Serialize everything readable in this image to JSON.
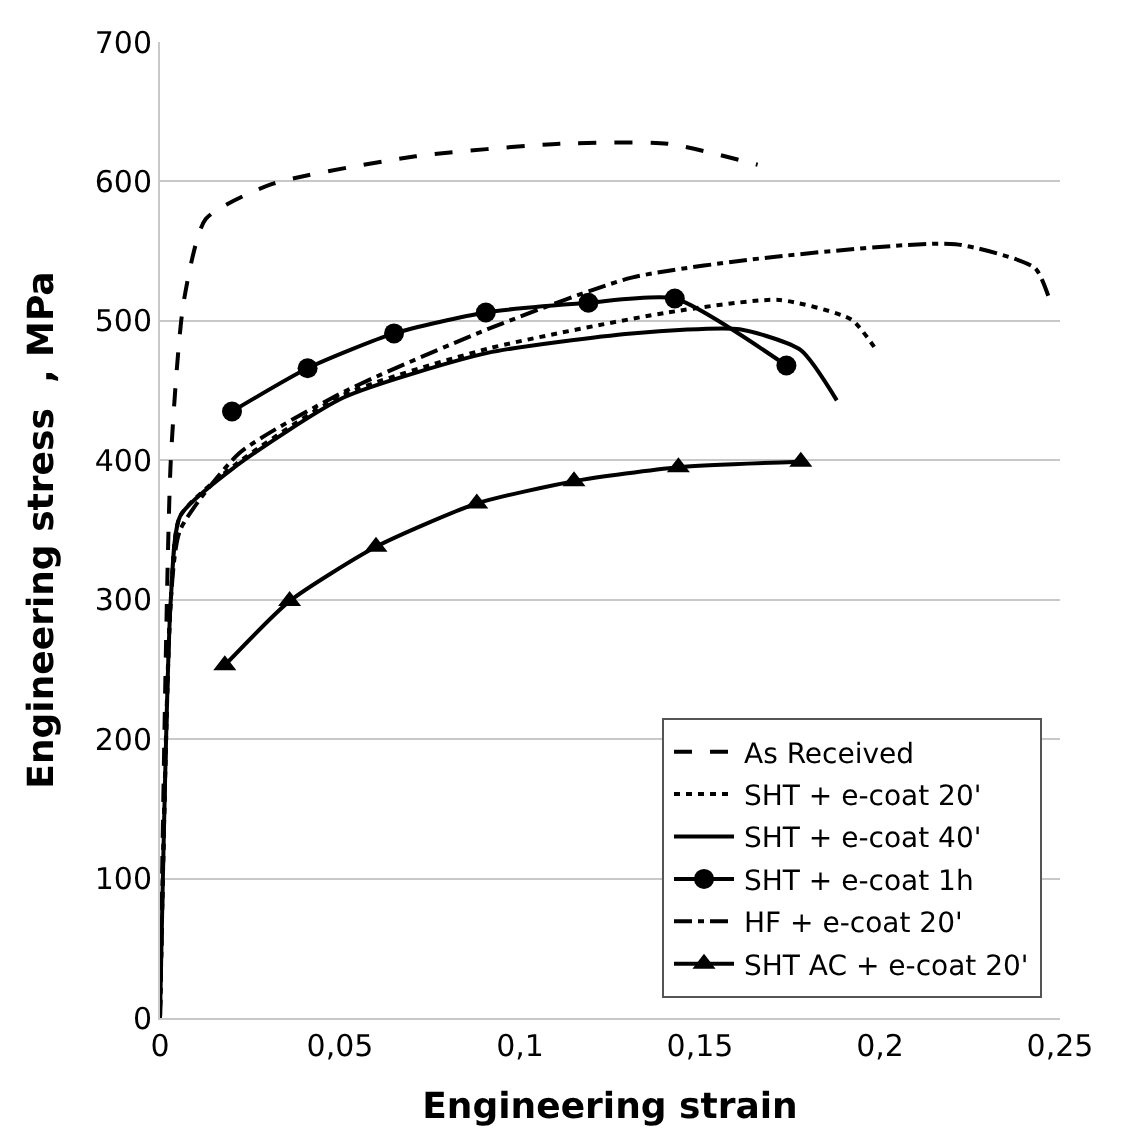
{
  "chart_data": {
    "type": "line",
    "xlabel": "Engineering strain",
    "ylabel": "Engineering stress  , MPa",
    "xlim": [
      0,
      0.25
    ],
    "ylim": [
      0,
      700
    ],
    "xticks": [
      0,
      {
        "value": 0.05,
        "label": "0,05"
      },
      {
        "value": 0.1,
        "label": "0,1"
      },
      {
        "value": 0.15,
        "label": "0,15"
      },
      {
        "value": 0.2,
        "label": "0,2"
      },
      {
        "value": 0.25,
        "label": "0,25"
      }
    ],
    "yticks": [
      0,
      100,
      200,
      300,
      400,
      500,
      600,
      700
    ],
    "grid": "y",
    "legend": "bottom right",
    "series": [
      {
        "name": "As Received",
        "color": "#000000",
        "line_style": "dashed",
        "marker": "none",
        "x": [
          0,
          0.003,
          0.0066,
          0.0127,
          0.031,
          0.071,
          0.111,
          0.141,
          0.166
        ],
        "values": [
          0,
          400,
          514,
          573,
          598,
          618,
          627,
          627,
          612
        ]
      },
      {
        "name": "SHT + e-coat 20'",
        "color": "#000000",
        "line_style": "dotted",
        "marker": "none",
        "x": [
          0,
          0.003,
          0.0056,
          0.021,
          0.051,
          0.091,
          0.141,
          0.172,
          0.192,
          0.199
        ],
        "values": [
          0,
          300,
          360,
          397,
          447,
          480,
          506,
          515,
          501,
          479
        ]
      },
      {
        "name": "SHT + e-coat 40'",
        "color": "#000000",
        "line_style": "solid",
        "marker": "none",
        "x": [
          0,
          0.003,
          0.0056,
          0.0207,
          0.051,
          0.091,
          0.131,
          0.161,
          0.178,
          0.188
        ],
        "values": [
          0,
          300,
          360,
          395,
          445,
          477,
          491,
          494,
          479,
          443
        ]
      },
      {
        "name": "SHT + e-coat 1h",
        "color": "#000000",
        "line_style": "solid",
        "marker": "circle",
        "x": [
          0.02,
          0.041,
          0.065,
          0.0905,
          0.119,
          0.143,
          0.174
        ],
        "values": [
          435,
          466,
          491,
          506,
          513,
          516,
          468
        ]
      },
      {
        "name": "HF + e-coat 20'",
        "color": "#000000",
        "line_style": "dashdot",
        "marker": "none",
        "x": [
          0,
          0.003,
          0.0056,
          0.022,
          0.051,
          0.091,
          0.131,
          0.171,
          0.221,
          0.243,
          0.247
        ],
        "values": [
          0,
          300,
          350,
          405,
          449,
          494,
          531,
          546,
          555,
          538,
          516
        ]
      },
      {
        "name": "SHT AC + e-coat 20'",
        "color": "#000000",
        "line_style": "solid",
        "marker": "triangle",
        "x": [
          0.018,
          0.036,
          0.06,
          0.088,
          0.115,
          0.144,
          0.178
        ],
        "values": [
          253,
          299,
          338,
          369,
          385,
          395,
          399
        ]
      }
    ]
  }
}
